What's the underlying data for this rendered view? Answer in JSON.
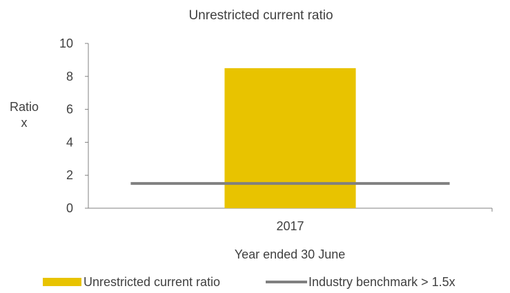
{
  "chart_data": {
    "type": "bar",
    "title": "Unrestricted current ratio",
    "xlabel": "Year ended 30 June",
    "ylabel_lines": [
      "Ratio",
      "x"
    ],
    "categories": [
      "2017"
    ],
    "ylim": [
      0,
      10
    ],
    "yticks": [
      0,
      2,
      4,
      6,
      8,
      10
    ],
    "series": [
      {
        "name": "Unrestricted current ratio",
        "kind": "bar",
        "values": [
          8.5
        ],
        "color": "#E8C300"
      },
      {
        "name": "Industry benchmark > 1.5x",
        "kind": "line",
        "values": [
          1.5
        ],
        "color": "#808080"
      }
    ],
    "grid": false,
    "legend_position": "bottom"
  }
}
